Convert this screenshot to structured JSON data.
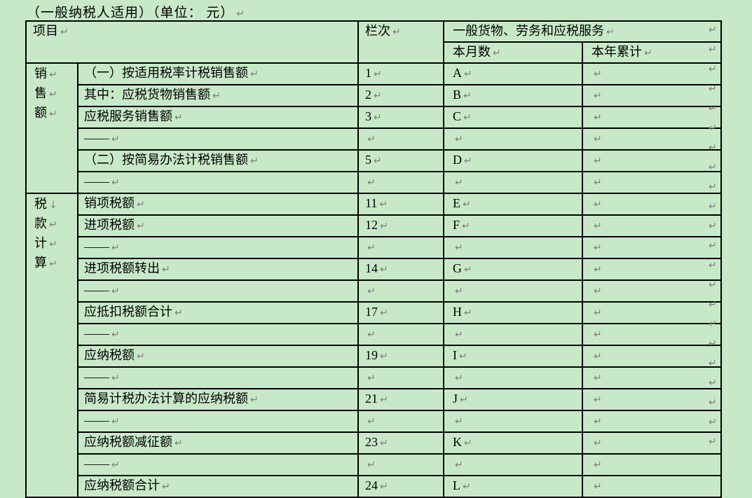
{
  "page": {
    "background_color": "#c8e9c8",
    "title": "（一般纳税人适用）（单位： 元）",
    "paragraph_mark": "↵",
    "soft_break_mark": "↓",
    "mark_color": "#7f7f7f"
  },
  "table": {
    "header": {
      "item": "项目",
      "column_index": "栏次",
      "category_group": "一般货物、劳务和应税服务",
      "current_month": "本月数",
      "year_to_date": "本年累计"
    },
    "groups": [
      {
        "label": "销售额",
        "label_chars": [
          {
            "ch": "销",
            "mark": "↵"
          },
          {
            "ch": "售",
            "mark": "↵"
          },
          {
            "ch": "额",
            "mark": "↵"
          }
        ],
        "rows": [
          {
            "name": "（一）按适用税率计税销售额",
            "col": "1",
            "month": "A",
            "year": ""
          },
          {
            "name": "其中：应税货物销售额",
            "col": "2",
            "month": "B",
            "year": ""
          },
          {
            "name": "应税服务销售额",
            "col": "3",
            "month": "C",
            "year": ""
          },
          {
            "name": "——",
            "col": "",
            "month": "",
            "year": ""
          },
          {
            "name": "（二）按简易办法计税销售额",
            "col": "5",
            "month": "D",
            "year": ""
          },
          {
            "name": "——",
            "col": "",
            "month": "",
            "year": ""
          }
        ]
      },
      {
        "label": "税款计算",
        "label_chars": [
          {
            "ch": "税",
            "mark": "↓"
          },
          {
            "ch": "款",
            "mark": "↵"
          },
          {
            "ch": "计",
            "mark": "↵"
          },
          {
            "ch": "算",
            "mark": "↵"
          }
        ],
        "rows": [
          {
            "name": "销项税额",
            "col": "11",
            "month": "E",
            "year": ""
          },
          {
            "name": "进项税额",
            "col": "12",
            "month": "F",
            "year": ""
          },
          {
            "name": "——",
            "col": "",
            "month": "",
            "year": ""
          },
          {
            "name": "进项税额转出",
            "col": "14",
            "month": "G",
            "year": ""
          },
          {
            "name": "——",
            "col": "",
            "month": "",
            "year": ""
          },
          {
            "name": "应抵扣税额合计",
            "col": "17",
            "month": "H",
            "year": ""
          },
          {
            "name": "——",
            "col": "",
            "month": "",
            "year": ""
          },
          {
            "name": "应纳税额",
            "col": "19",
            "month": "I",
            "year": ""
          },
          {
            "name": "——",
            "col": "",
            "month": "",
            "year": ""
          },
          {
            "name": "简易计税办法计算的应纳税额",
            "col": "21",
            "month": "J",
            "year": ""
          },
          {
            "name": "——",
            "col": "",
            "month": "",
            "year": ""
          },
          {
            "name": "应纳税额减征额",
            "col": "23",
            "month": "K",
            "year": ""
          },
          {
            "name": "——",
            "col": "",
            "month": "",
            "year": ""
          },
          {
            "name": "应纳税额合计",
            "col": "24",
            "month": "L",
            "year": ""
          }
        ]
      }
    ]
  }
}
